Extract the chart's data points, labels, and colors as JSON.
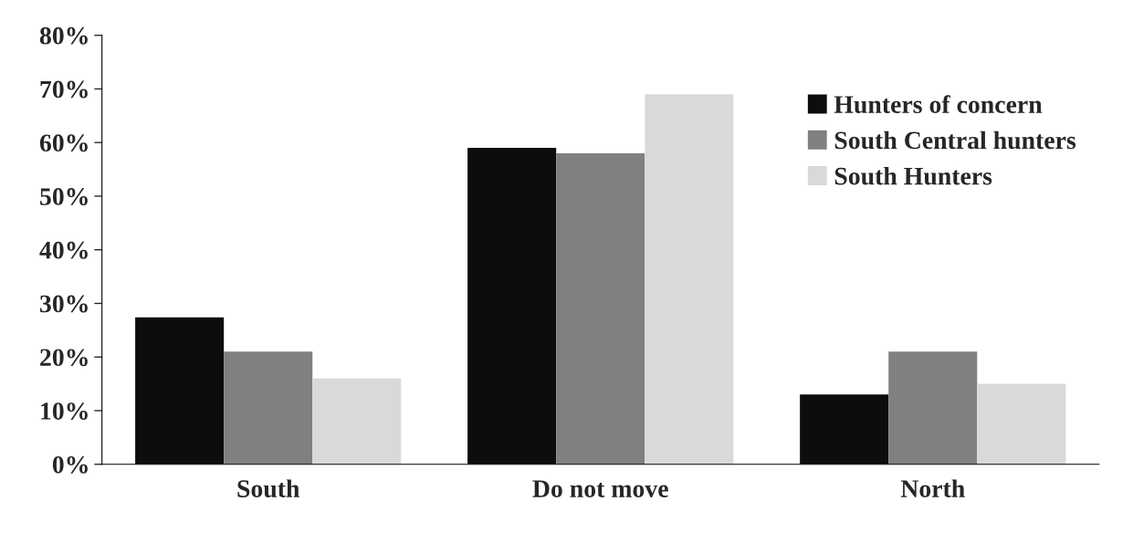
{
  "chart_data": {
    "type": "bar",
    "categories": [
      "South",
      "Do not move",
      "North"
    ],
    "series": [
      {
        "name": "Hunters of concern",
        "color": "#0d0d0d",
        "values": [
          27.4,
          59,
          13
        ]
      },
      {
        "name": "South Central hunters",
        "color": "#808080",
        "values": [
          21,
          58,
          21
        ]
      },
      {
        "name": "South Hunters",
        "color": "#d9d9d9",
        "values": [
          16,
          69,
          15
        ]
      }
    ],
    "ylim": [
      0,
      80
    ],
    "yticks": [
      {
        "value": 0,
        "label": "0%"
      },
      {
        "value": 10,
        "label": "10%"
      },
      {
        "value": 20,
        "label": "20%"
      },
      {
        "value": 30,
        "label": "30%"
      },
      {
        "value": 40,
        "label": "40%"
      },
      {
        "value": 50,
        "label": "50%"
      },
      {
        "value": 60,
        "label": "60%"
      },
      {
        "value": 70,
        "label": "70%"
      },
      {
        "value": 80,
        "label": "80%"
      }
    ],
    "grid": false,
    "legend": "right"
  }
}
